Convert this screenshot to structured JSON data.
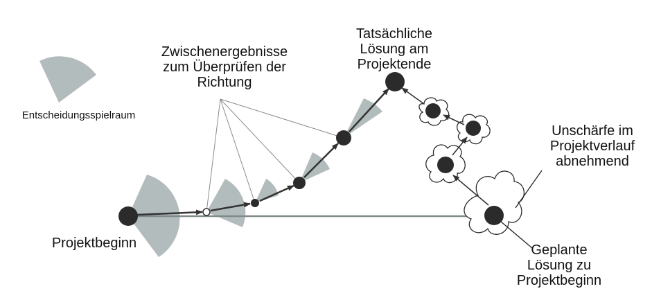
{
  "labels": {
    "legend": "Entscheidungsspielraum",
    "intermediate": [
      "Zwischenergebnisse",
      "zum Überprüfen der",
      "Richtung"
    ],
    "actual": [
      "Tatsächliche",
      "Lösung am",
      "Projektende"
    ],
    "start": "Projektbeginn",
    "uncertainty": [
      "Unschärfe im",
      "Projektverlauf",
      "abnehmend"
    ],
    "planned": [
      "Geplante",
      "Lösung zu",
      "Projektbeginn"
    ]
  },
  "colors": {
    "sector": "#b3bcbc",
    "node": "#2b2b2b",
    "line": "#333333",
    "planned_arrow": "#7f8a8a",
    "thin_line": "#8a8a8a"
  }
}
